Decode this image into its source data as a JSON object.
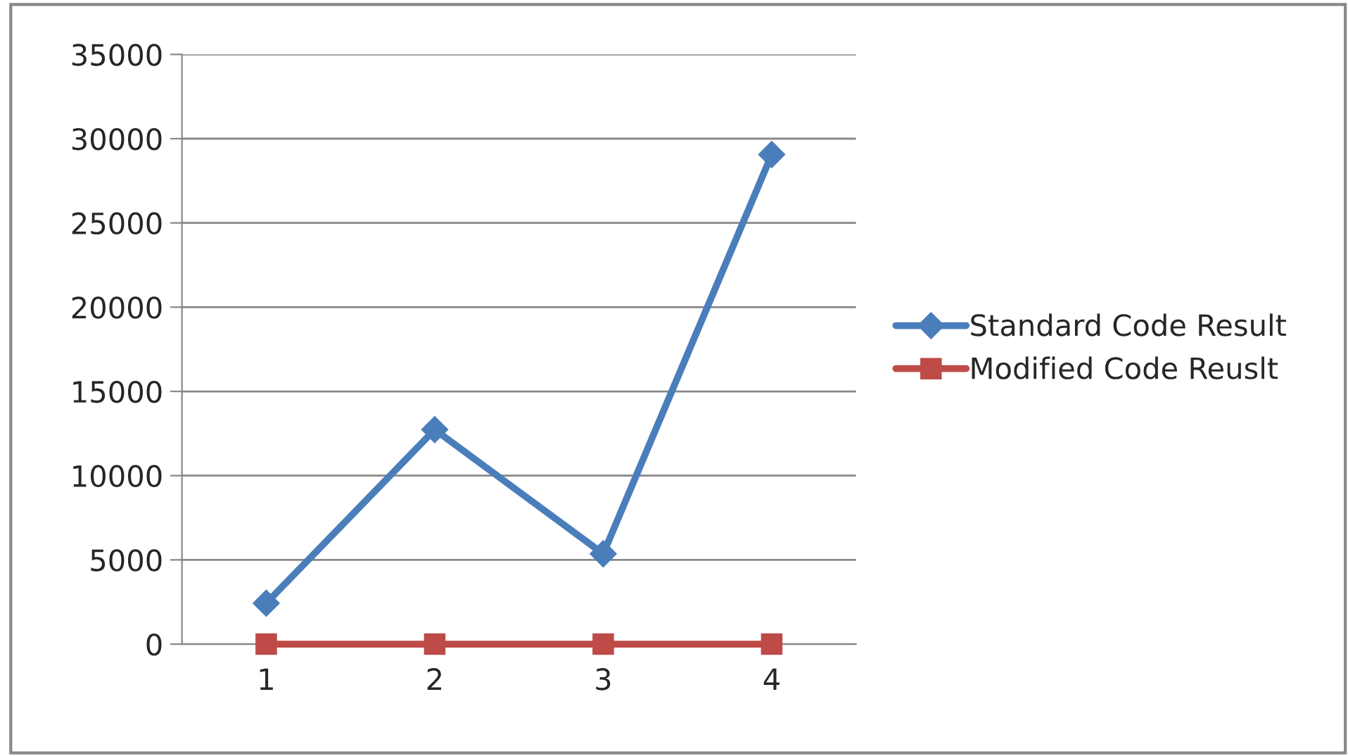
{
  "chart_data": {
    "type": "line",
    "categories": [
      "1",
      "2",
      "3",
      "4"
    ],
    "series": [
      {
        "name": "Standard Code Result",
        "color": "#4a7ebb",
        "marker": "diamond",
        "values": [
          2430,
          12730,
          5360,
          29060
        ]
      },
      {
        "name": "Modified Code Reuslt",
        "color": "#be4b48",
        "marker": "square",
        "values": [
          0,
          0,
          0,
          0
        ]
      }
    ],
    "ylim": [
      0,
      35000
    ],
    "yticks": [
      0,
      5000,
      10000,
      15000,
      20000,
      25000,
      30000,
      35000
    ],
    "grid": "y",
    "legend": "right",
    "line_style": "solid"
  }
}
